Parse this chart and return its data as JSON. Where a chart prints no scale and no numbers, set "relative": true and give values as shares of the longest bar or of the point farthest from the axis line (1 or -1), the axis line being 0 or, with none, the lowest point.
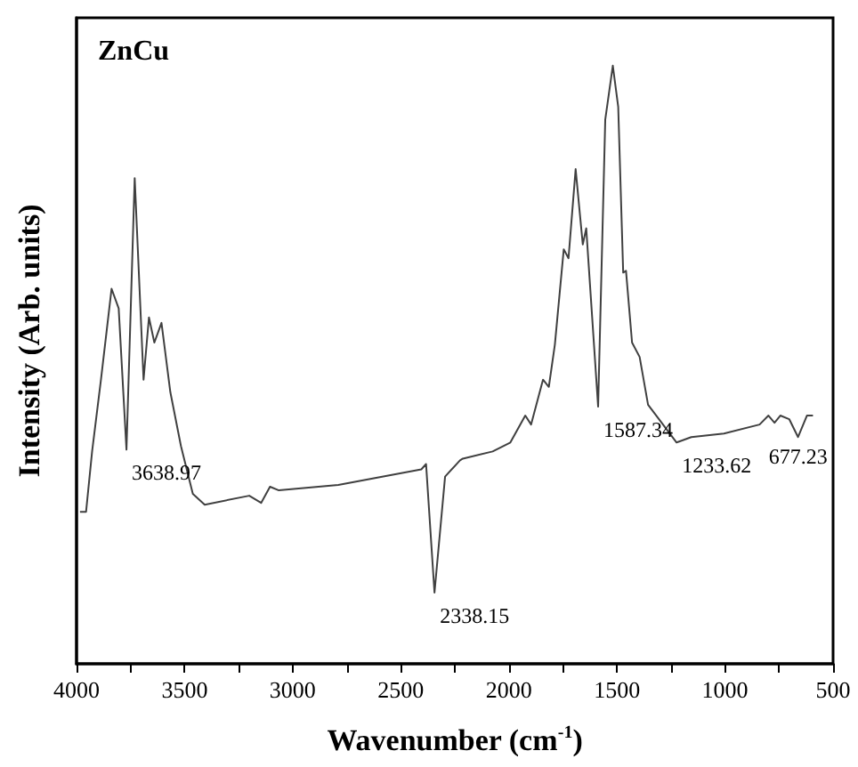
{
  "chart_data": {
    "type": "line",
    "title": "ZnCu",
    "xlabel": "Wavenumber (cm$^{-1}$)",
    "ylabel": "Intensity (Arb. units)",
    "relative": true,
    "xlim": [
      4000,
      500
    ],
    "xticks": [
      4000,
      3500,
      3000,
      2500,
      2000,
      1500,
      1000,
      500
    ],
    "series": [
      {
        "color": "#404040",
        "x": [
          3984,
          3956,
          3928,
          3887,
          3838,
          3805,
          3769,
          3731,
          3690,
          3665,
          3640,
          3607,
          3566,
          3517,
          3462,
          3407,
          3201,
          3146,
          3105,
          3064,
          2789,
          2405,
          2383,
          2344,
          2295,
          2226,
          2213,
          2075,
          1993,
          1924,
          1897,
          1842,
          1815,
          1787,
          1746,
          1724,
          1691,
          1658,
          1642,
          1587,
          1554,
          1519,
          1494,
          1471,
          1458,
          1430,
          1395,
          1356,
          1293,
          1224,
          1156,
          1005,
          840,
          799,
          771,
          744,
          703,
          662,
          621,
          593
        ],
        "values": [
          0.254,
          0.254,
          0.355,
          0.475,
          0.627,
          0.594,
          0.358,
          0.812,
          0.475,
          0.579,
          0.537,
          0.57,
          0.454,
          0.364,
          0.284,
          0.266,
          0.281,
          0.269,
          0.296,
          0.29,
          0.299,
          0.325,
          0.334,
          0.119,
          0.313,
          0.34,
          0.343,
          0.355,
          0.37,
          0.415,
          0.4,
          0.475,
          0.463,
          0.534,
          0.693,
          0.678,
          0.827,
          0.701,
          0.728,
          0.43,
          0.91,
          1.0,
          0.931,
          0.654,
          0.657,
          0.537,
          0.513,
          0.433,
          0.403,
          0.37,
          0.379,
          0.385,
          0.4,
          0.415,
          0.403,
          0.415,
          0.409,
          0.379,
          0.415,
          0.415
        ]
      }
    ],
    "annotations": [
      {
        "text": "3638.97",
        "x": 3769,
        "y": 0.358
      },
      {
        "text": "2338.15",
        "x": 2344,
        "y": 0.119
      },
      {
        "text": "1587.34",
        "x": 1587,
        "y": 0.43
      },
      {
        "text": "1233.62",
        "x": 1224,
        "y": 0.37
      },
      {
        "text": "677.23",
        "x": 662,
        "y": 0.379
      }
    ]
  }
}
